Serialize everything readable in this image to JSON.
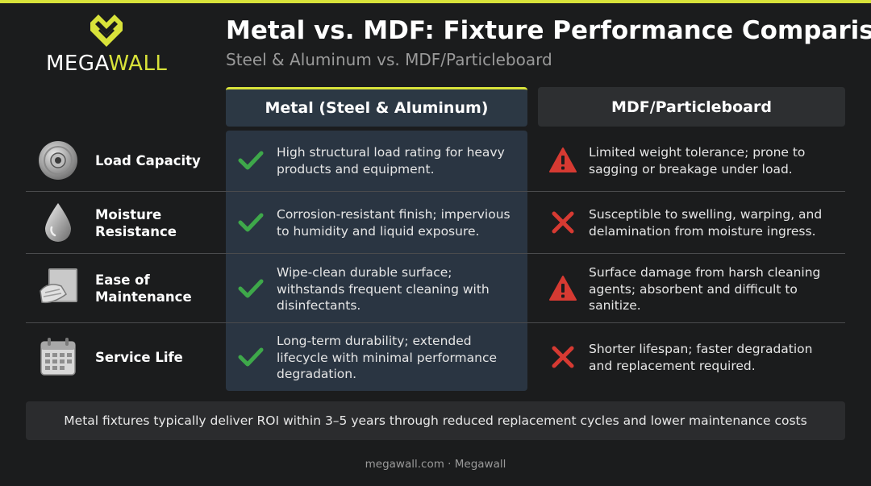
{
  "brand": {
    "name_part1": "MEGA",
    "name_part2": "WALL",
    "accent": "#d8e23a"
  },
  "header": {
    "title": "Metal vs. MDF: Fixture Performance Comparison",
    "subtitle": "Steel & Aluminum vs. MDF/Particleboard"
  },
  "columns": {
    "metal": "Metal (Steel & Aluminum)",
    "mdf": "MDF/Particleboard"
  },
  "rows": [
    {
      "icon": "weight-plate-icon",
      "label": "Load Capacity",
      "metal_icon": "checkmark-icon",
      "metal": "High structural load rating for heavy products and equipment.",
      "mdf_icon": "warning-icon",
      "mdf": "Limited weight tolerance; prone to sagging or breakage under load."
    },
    {
      "icon": "water-drop-icon",
      "label": "Moisture Resistance",
      "metal_icon": "checkmark-icon",
      "metal": "Corrosion-resistant finish; impervious to humidity and liquid exposure.",
      "mdf_icon": "x-mark-icon",
      "mdf": "Susceptible to swelling, warping, and delamination from moisture ingress."
    },
    {
      "icon": "cleaning-cloth-icon",
      "label": "Ease of Maintenance",
      "metal_icon": "checkmark-icon",
      "metal": "Wipe-clean durable surface; withstands frequent cleaning with disinfectants.",
      "mdf_icon": "warning-icon",
      "mdf": "Surface damage from harsh cleaning agents; absorbent and difficult to sanitize."
    },
    {
      "icon": "calendar-icon",
      "label": "Service Life",
      "metal_icon": "checkmark-icon",
      "metal": "Long-term durability; extended lifecycle with minimal performance degradation.",
      "mdf_icon": "x-mark-icon",
      "mdf": "Shorter lifespan; faster degradation and replacement required."
    }
  ],
  "banner": "Metal fixtures typically deliver ROI within 3–5 years through reduced replacement cycles and lower maintenance costs",
  "footer": "megawall.com · Megawall",
  "colors": {
    "check": "#3ea84a",
    "warning": "#d63a32",
    "x": "#d63a32"
  }
}
